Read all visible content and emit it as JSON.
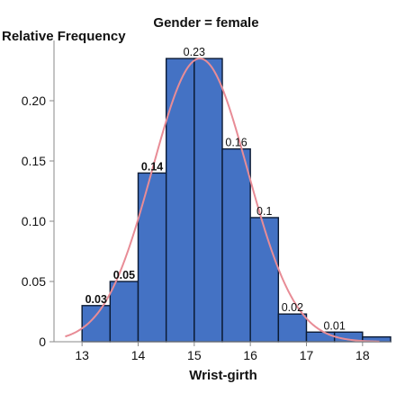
{
  "chart_data": {
    "type": "bar",
    "title": "Gender = female",
    "ylabel": "Relative Frequency",
    "xlabel": "Wrist-girth",
    "xlim": [
      12.5,
      18.5
    ],
    "ylim": [
      0,
      0.25
    ],
    "x_ticks": [
      "13",
      "14",
      "15",
      "16",
      "17",
      "18"
    ],
    "y_ticks": [
      "0",
      "0.05",
      "0.10",
      "0.15",
      "0.20"
    ],
    "bins": [
      {
        "start": 13.0,
        "end": 13.5,
        "value": 0.03
      },
      {
        "start": 13.5,
        "end": 14.0,
        "value": 0.05
      },
      {
        "start": 14.0,
        "end": 14.5,
        "value": 0.14
      },
      {
        "start": 14.5,
        "end": 15.0,
        "value": 0.235
      },
      {
        "start": 15.0,
        "end": 15.5,
        "value": 0.235
      },
      {
        "start": 15.5,
        "end": 16.0,
        "value": 0.16
      },
      {
        "start": 16.0,
        "end": 16.5,
        "value": 0.103
      },
      {
        "start": 16.5,
        "end": 17.0,
        "value": 0.023
      },
      {
        "start": 17.0,
        "end": 17.5,
        "value": 0.008
      },
      {
        "start": 17.5,
        "end": 18.0,
        "value": 0.008
      },
      {
        "start": 18.0,
        "end": 18.5,
        "value": 0.004
      }
    ],
    "annotations": [
      {
        "text": "0.03",
        "x": 13.25,
        "y": 0.03,
        "bold": true
      },
      {
        "text": "0.05",
        "x": 13.75,
        "y": 0.05,
        "bold": true
      },
      {
        "text": "0.14",
        "x": 14.25,
        "y": 0.14,
        "bold": true
      },
      {
        "text": "0.23",
        "x": 15.0,
        "y": 0.235,
        "bold": false
      },
      {
        "text": "0.16",
        "x": 15.75,
        "y": 0.16,
        "bold": false
      },
      {
        "text": "0.1",
        "x": 16.25,
        "y": 0.103,
        "bold": false
      },
      {
        "text": "0.02",
        "x": 16.75,
        "y": 0.023,
        "bold": false
      },
      {
        "text": "0.01",
        "x": 17.5,
        "y": 0.008,
        "bold": false
      }
    ],
    "normal_curve": {
      "mean": 15.1,
      "sd": 0.85,
      "peak": 0.235
    },
    "colors": {
      "bar_fill": "#4472C4",
      "bar_stroke": "#0b1a33",
      "curve": "#e88c96",
      "axis": "#8a8a8a"
    }
  }
}
